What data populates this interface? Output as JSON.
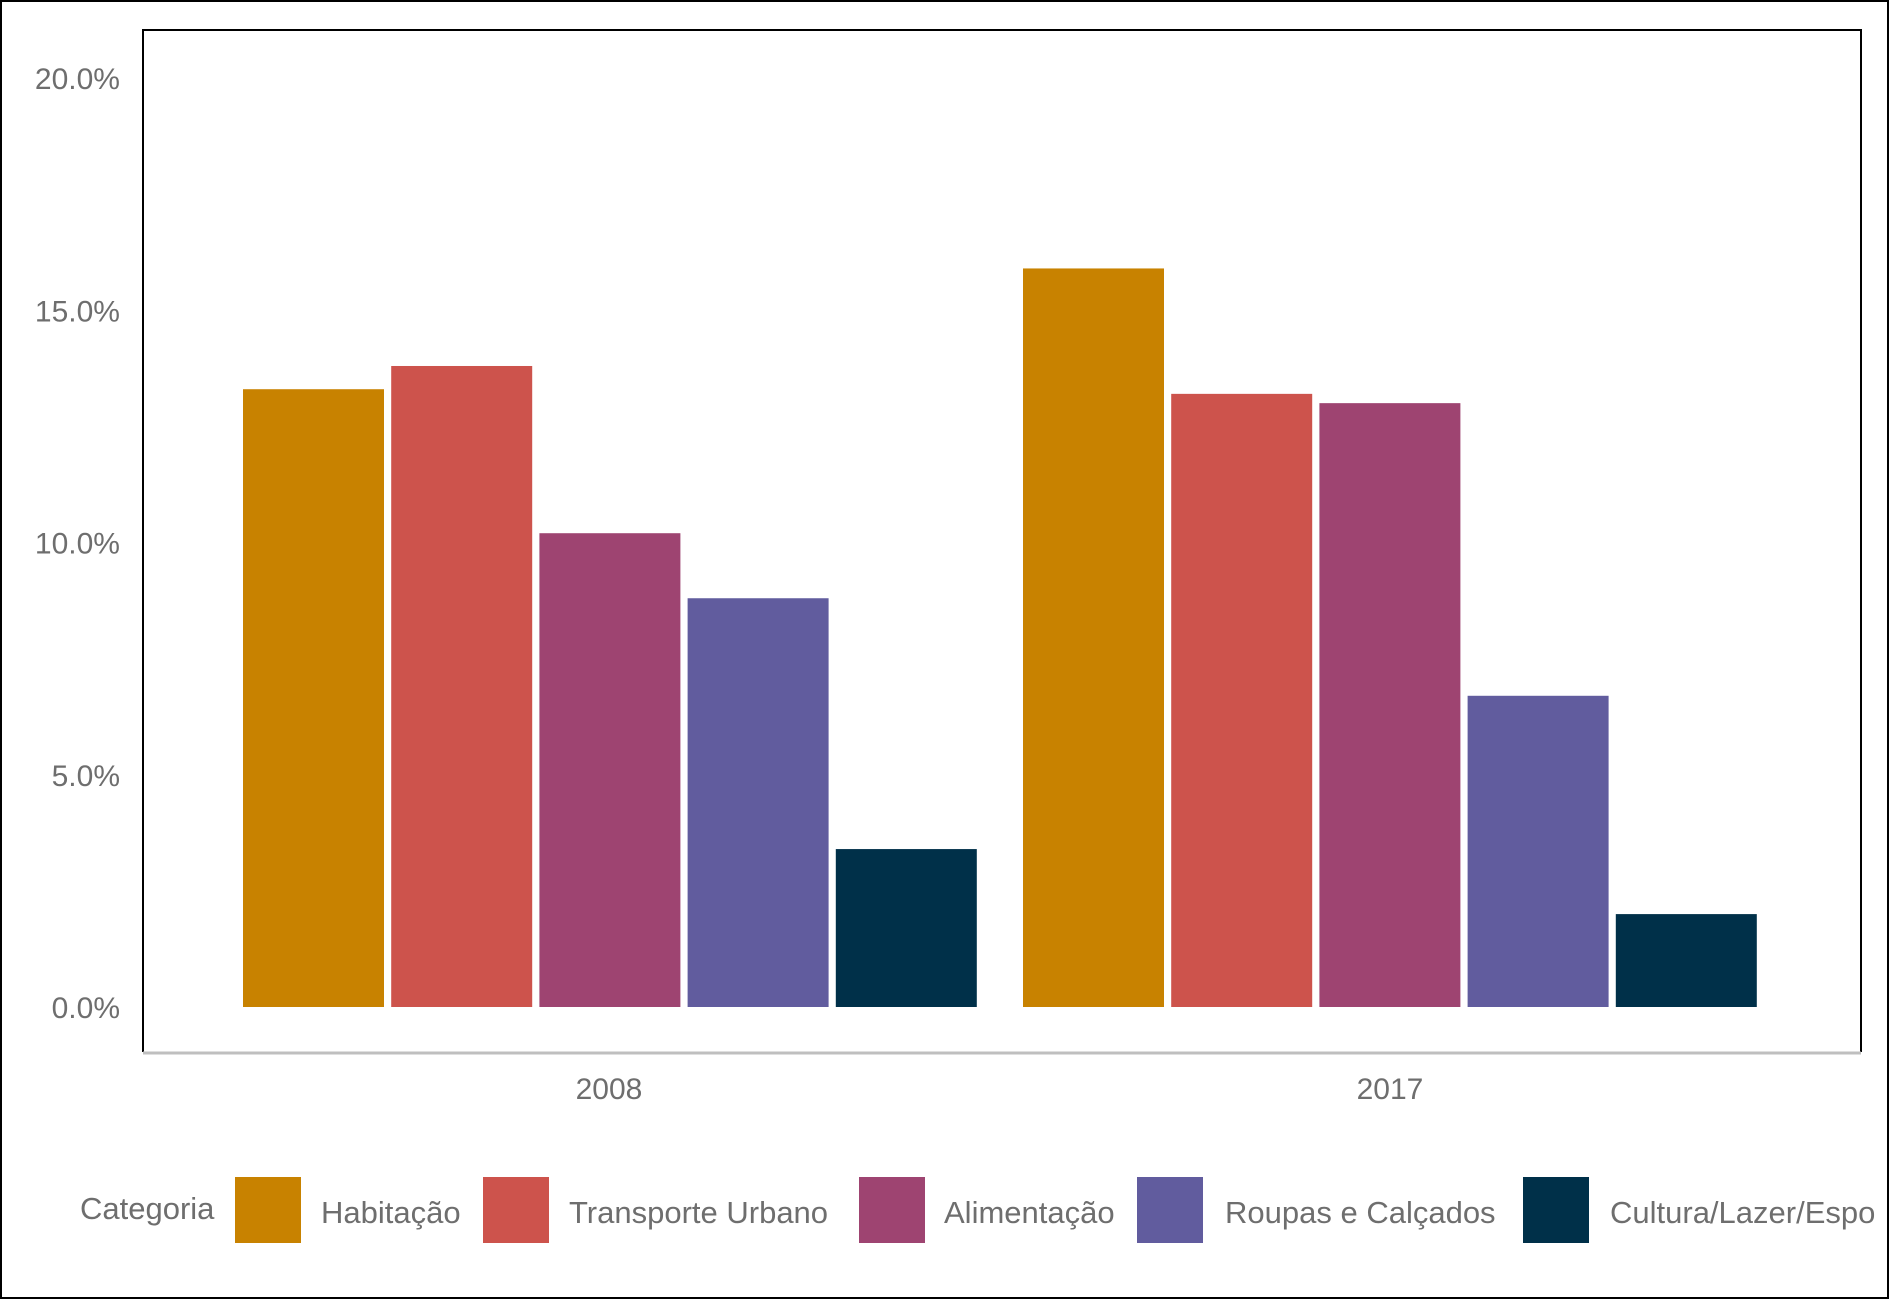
{
  "chart_data": {
    "type": "bar",
    "categories": [
      "2008",
      "2017"
    ],
    "series": [
      {
        "name": "Habitação",
        "color": "#C88200",
        "values": [
          13.3,
          15.9
        ]
      },
      {
        "name": "Transporte Urbano",
        "color": "#CD534C",
        "values": [
          13.8,
          13.2
        ]
      },
      {
        "name": "Alimentação",
        "color": "#9E4471",
        "values": [
          10.2,
          13.0
        ]
      },
      {
        "name": "Roupas e Calçados",
        "color": "#615C9E",
        "values": [
          8.8,
          6.7
        ]
      },
      {
        "name": "Cultura/Lazer/Espo",
        "color": "#003049",
        "values": [
          3.4,
          2.0
        ]
      }
    ],
    "ylim": [
      0,
      20
    ],
    "yticks": [
      {
        "value": 0,
        "label": "0.0%"
      },
      {
        "value": 5,
        "label": "5.0%"
      },
      {
        "value": 10,
        "label": "10.0%"
      },
      {
        "value": 15,
        "label": "15.0%"
      },
      {
        "value": 20,
        "label": "20.0%"
      }
    ],
    "legend_title": "Categoria",
    "legend_position": "bottom",
    "grid": false
  }
}
